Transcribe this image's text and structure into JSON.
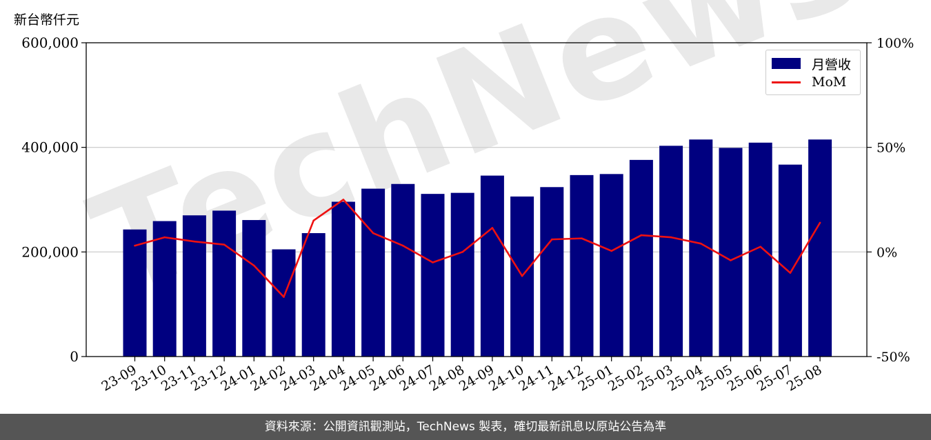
{
  "unit_label": "新台幣仟元",
  "footer_text": "資料來源：公開資訊觀測站，TechNews 製表，確切最新訊息以原站公告為準",
  "watermark": {
    "text": "TechNews",
    "color": "#e9e9e9"
  },
  "colors": {
    "bar": "#000080",
    "line": "#ee1111",
    "grid": "#d0d0d0"
  },
  "chart_data": {
    "type": "bar",
    "categories": [
      "23-09",
      "23-10",
      "23-11",
      "23-12",
      "24-01",
      "24-02",
      "24-03",
      "24-04",
      "24-05",
      "24-06",
      "24-07",
      "24-08",
      "24-09",
      "24-10",
      "24-11",
      "24-12",
      "25-01",
      "25-02",
      "25-03",
      "25-04",
      "25-05",
      "25-06",
      "25-07",
      "25-08"
    ],
    "series": [
      {
        "name": "月營收",
        "type": "bar",
        "axis": "left",
        "values": [
          243000,
          259000,
          270000,
          279000,
          261000,
          205000,
          236000,
          296000,
          321000,
          330000,
          311000,
          313000,
          346000,
          306000,
          324000,
          347000,
          349000,
          376000,
          403000,
          415000,
          399000,
          409000,
          367000,
          415000
        ]
      },
      {
        "name": "MoM",
        "type": "line",
        "axis": "right",
        "values": [
          3,
          7,
          5,
          3.5,
          -6.5,
          -21.5,
          15,
          25,
          9,
          3,
          -5,
          0,
          11.5,
          -11.5,
          6,
          6.5,
          0.5,
          8,
          7,
          4,
          -4,
          2.5,
          -10,
          14
        ]
      }
    ],
    "left_axis": {
      "ylim": [
        0,
        600000
      ],
      "ticks": [
        "0",
        "200,000",
        "400,000",
        "600,000"
      ],
      "tick_values": [
        0,
        200000,
        400000,
        600000
      ]
    },
    "right_axis": {
      "ylim": [
        -50,
        100
      ],
      "ticks": [
        "-50%",
        "0%",
        "50%",
        "100%"
      ],
      "tick_values": [
        -50,
        0,
        50,
        100
      ]
    },
    "grid": "horizontal",
    "legend_position": "top-right"
  }
}
